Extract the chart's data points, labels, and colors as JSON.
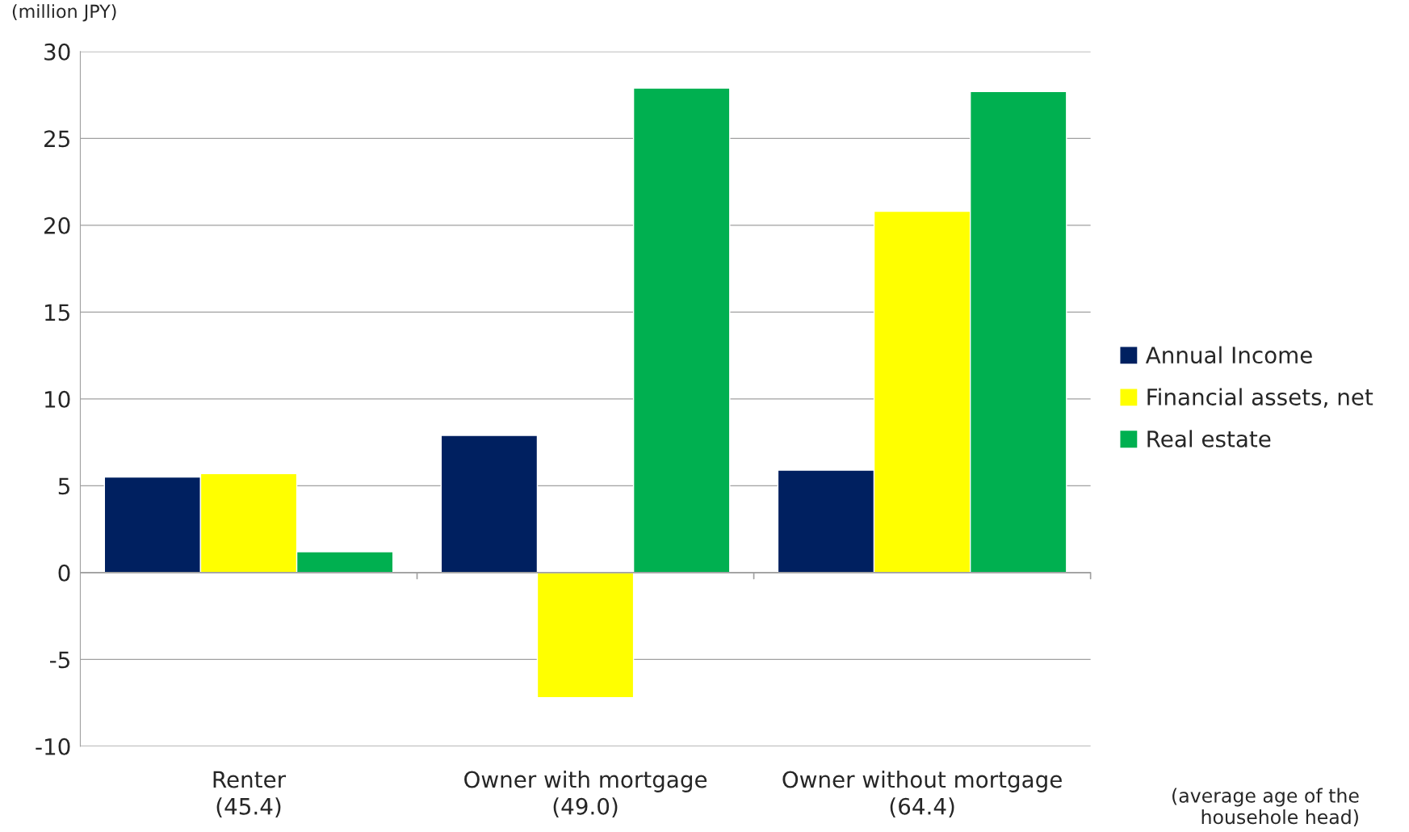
{
  "chart_data": {
    "type": "bar",
    "ylabel": "(million JPY)",
    "categories": [
      "Renter\n(45.4)",
      "Owner with mortgage\n(49.0)",
      "Owner without mortgage\n(64.4)"
    ],
    "series": [
      {
        "name": "Annual Income",
        "color": "#002060",
        "values": [
          5.5,
          7.9,
          5.9
        ]
      },
      {
        "name": "Financial assets, net",
        "color": "#ffff00",
        "values": [
          5.7,
          -7.2,
          20.8
        ]
      },
      {
        "name": "Real estate",
        "color": "#00b050",
        "values": [
          1.2,
          27.9,
          27.7
        ]
      }
    ],
    "ylim": [
      -10,
      30
    ],
    "yticks": [
      {
        "value": -10,
        "label": "-10"
      },
      {
        "value": -5,
        "label": "-5"
      },
      0,
      5,
      10,
      15,
      20,
      25,
      30
    ],
    "grid": "y",
    "legend": "right",
    "annotations": [
      "(average age of the\nhousehole head)"
    ]
  }
}
